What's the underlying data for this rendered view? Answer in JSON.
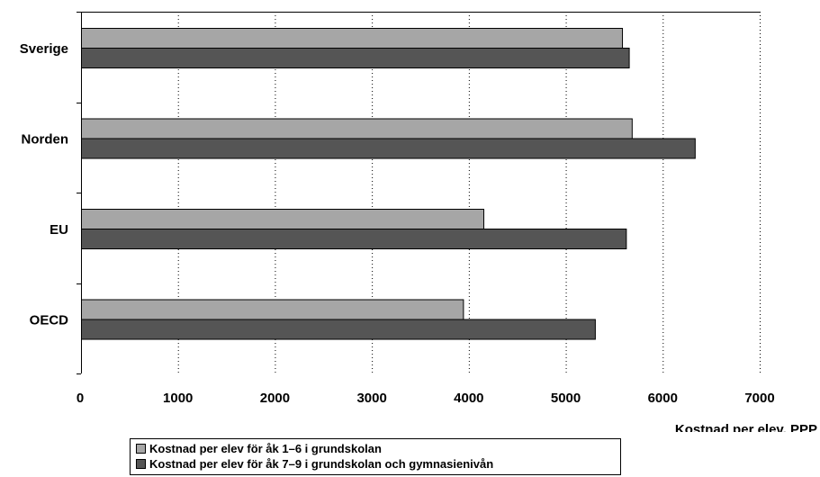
{
  "chart_data": {
    "type": "bar",
    "orientation": "horizontal",
    "categories": [
      "Sverige",
      "Norden",
      "EU",
      "OECD"
    ],
    "series": [
      {
        "name": "Kostnad per elev för åk 1–6 i grundskolan",
        "color": "#a6a6a6",
        "values": [
          5580,
          5680,
          4150,
          3940
        ]
      },
      {
        "name": "Kostnad per elev för åk 7–9 i grundskolan och gymnasienivån",
        "color": "#555555",
        "values": [
          5650,
          6330,
          5620,
          5300
        ]
      }
    ],
    "xlabel": "Kostnad per elev, PPP",
    "ylabel": "",
    "xlim": [
      0,
      7000
    ],
    "xticks": [
      0,
      1000,
      2000,
      3000,
      4000,
      5000,
      6000,
      7000
    ],
    "xtick_labels": [
      "0",
      "1000",
      "2000",
      "3000",
      "4000",
      "5000",
      "6000",
      "7000"
    ],
    "grid": "vertical dotted",
    "legend_position": "bottom"
  }
}
